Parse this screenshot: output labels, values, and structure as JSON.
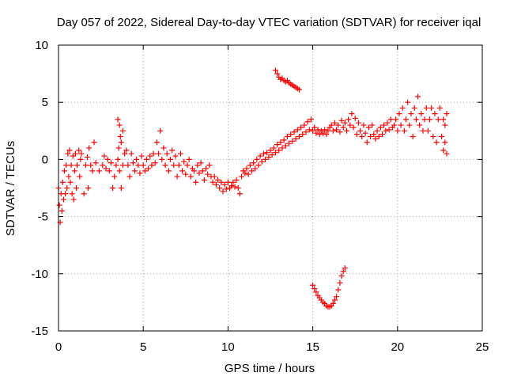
{
  "chart_data": {
    "type": "scatter",
    "title": "Day 057 of 2022, Sidereal Day-to-day VTEC variation (SDTVAR) for receiver iqal",
    "xlabel": "GPS time / hours",
    "ylabel": "SDTVAR / TECUs",
    "xlim": [
      0,
      25
    ],
    "ylim": [
      -15,
      10
    ],
    "xticks": [
      0,
      5,
      10,
      15,
      20,
      25
    ],
    "yticks": [
      -15,
      -10,
      -5,
      0,
      5,
      10
    ],
    "grid": true,
    "marker": "+",
    "series": [
      {
        "name": "SDTVAR",
        "color": "#ff0000",
        "points": [
          [
            0.0,
            -2.5
          ],
          [
            0.05,
            -4.0
          ],
          [
            0.1,
            -5.5
          ],
          [
            0.15,
            -3.0
          ],
          [
            0.2,
            -4.5
          ],
          [
            0.25,
            -2.0
          ],
          [
            0.3,
            -3.5
          ],
          [
            0.35,
            -1.0
          ],
          [
            0.4,
            -3.0
          ],
          [
            0.45,
            -0.5
          ],
          [
            0.5,
            -2.5
          ],
          [
            0.55,
            0.5
          ],
          [
            0.6,
            -1.5
          ],
          [
            0.65,
            0.8
          ],
          [
            0.7,
            -2.0
          ],
          [
            0.75,
            -0.5
          ],
          [
            0.8,
            -3.0
          ],
          [
            0.85,
            0.3
          ],
          [
            0.9,
            -3.5
          ],
          [
            0.95,
            -1.0
          ],
          [
            1.0,
            0.5
          ],
          [
            1.05,
            -2.5
          ],
          [
            1.1,
            -0.5
          ],
          [
            1.2,
            0.8
          ],
          [
            1.25,
            -1.5
          ],
          [
            1.3,
            0.0
          ],
          [
            1.35,
            0.5
          ],
          [
            1.5,
            -3.0
          ],
          [
            1.6,
            -0.5
          ],
          [
            1.7,
            0.2
          ],
          [
            1.8,
            1.0
          ],
          [
            1.9,
            -0.5
          ],
          [
            2.0,
            -1.0
          ],
          [
            2.1,
            1.5
          ],
          [
            2.2,
            -0.3
          ],
          [
            1.75,
            -2.5
          ],
          [
            2.4,
            -1.0
          ],
          [
            2.6,
            -0.5
          ],
          [
            2.7,
            0.3
          ],
          [
            2.8,
            -0.8
          ],
          [
            2.9,
            0.0
          ],
          [
            3.0,
            -1.0
          ],
          [
            3.1,
            -0.3
          ],
          [
            3.2,
            -2.5
          ],
          [
            3.3,
            -1.5
          ],
          [
            3.4,
            -0.5
          ],
          [
            3.5,
            3.5
          ],
          [
            3.55,
            1.0
          ],
          [
            3.6,
            3.0
          ],
          [
            3.65,
            2.0
          ],
          [
            3.7,
            1.5
          ],
          [
            3.8,
            2.5
          ],
          [
            3.9,
            0.5
          ],
          [
            3.5,
            0.0
          ],
          [
            3.6,
            -1.0
          ],
          [
            3.7,
            -2.5
          ],
          [
            3.8,
            -0.5
          ],
          [
            4.0,
            0.8
          ],
          [
            4.1,
            -0.5
          ],
          [
            4.2,
            -1.5
          ],
          [
            4.3,
            0.5
          ],
          [
            4.4,
            -0.3
          ],
          [
            4.5,
            -1.0
          ],
          [
            4.6,
            0.0
          ],
          [
            4.7,
            -0.5
          ],
          [
            4.8,
            -1.2
          ],
          [
            4.9,
            0.3
          ],
          [
            5.0,
            -0.5
          ],
          [
            5.1,
            -1.0
          ],
          [
            5.2,
            0.0
          ],
          [
            5.3,
            -0.8
          ],
          [
            5.4,
            0.3
          ],
          [
            5.5,
            -0.5
          ],
          [
            5.6,
            0.5
          ],
          [
            5.7,
            -0.3
          ],
          [
            5.8,
            1.5
          ],
          [
            5.9,
            0.5
          ],
          [
            6.0,
            2.5
          ],
          [
            6.1,
            0.0
          ],
          [
            6.2,
            1.0
          ],
          [
            6.3,
            -0.5
          ],
          [
            6.4,
            0.5
          ],
          [
            6.5,
            -1.0
          ],
          [
            6.6,
            0.0
          ],
          [
            6.7,
            0.8
          ],
          [
            6.8,
            -0.5
          ],
          [
            6.9,
            0.3
          ],
          [
            7.0,
            -1.5
          ],
          [
            7.1,
            -0.5
          ],
          [
            7.2,
            0.5
          ],
          [
            7.3,
            -1.0
          ],
          [
            7.4,
            -0.2
          ],
          [
            7.5,
            -1.3
          ],
          [
            7.6,
            -0.5
          ],
          [
            7.7,
            0.0
          ],
          [
            7.8,
            -1.5
          ],
          [
            7.9,
            -0.8
          ],
          [
            8.0,
            -1.0
          ],
          [
            8.1,
            -2.0
          ],
          [
            8.2,
            -0.5
          ],
          [
            8.3,
            -1.2
          ],
          [
            8.4,
            -0.3
          ],
          [
            8.5,
            -1.0
          ],
          [
            8.6,
            -1.8
          ],
          [
            8.7,
            -0.8
          ],
          [
            8.8,
            -1.3
          ],
          [
            8.9,
            -0.5
          ],
          [
            9.0,
            -1.5
          ],
          [
            9.1,
            -2.0
          ],
          [
            9.2,
            -1.5
          ],
          [
            9.3,
            -2.2
          ],
          [
            9.4,
            -1.8
          ],
          [
            9.5,
            -2.5
          ],
          [
            9.6,
            -2.0
          ],
          [
            9.7,
            -2.8
          ],
          [
            9.8,
            -2.2
          ],
          [
            9.9,
            -2.6
          ],
          [
            10.0,
            -2.0
          ],
          [
            10.1,
            -2.5
          ],
          [
            10.2,
            -2.3
          ],
          [
            10.3,
            -2.0
          ],
          [
            10.4,
            -2.4
          ],
          [
            10.5,
            -1.8
          ],
          [
            10.6,
            -2.5
          ],
          [
            10.7,
            -3.0
          ],
          [
            10.8,
            -1.5
          ],
          [
            10.9,
            -1.0
          ],
          [
            11.0,
            -1.2
          ],
          [
            11.1,
            -0.8
          ],
          [
            11.2,
            -1.3
          ],
          [
            11.3,
            -0.5
          ],
          [
            11.4,
            -1.0
          ],
          [
            11.5,
            -0.3
          ],
          [
            11.6,
            -0.8
          ],
          [
            11.7,
            0.0
          ],
          [
            11.8,
            -0.5
          ],
          [
            11.9,
            0.3
          ],
          [
            12.0,
            -0.2
          ],
          [
            12.1,
            0.5
          ],
          [
            12.2,
            0.0
          ],
          [
            12.3,
            0.6
          ],
          [
            12.4,
            0.2
          ],
          [
            12.5,
            0.8
          ],
          [
            12.6,
            0.4
          ],
          [
            12.7,
            1.0
          ],
          [
            12.8,
            0.6
          ],
          [
            12.9,
            1.3
          ],
          [
            13.0,
            0.8
          ],
          [
            13.1,
            1.5
          ],
          [
            13.2,
            1.0
          ],
          [
            13.3,
            1.7
          ],
          [
            13.4,
            1.2
          ],
          [
            13.5,
            2.0
          ],
          [
            13.6,
            1.4
          ],
          [
            13.7,
            2.2
          ],
          [
            13.8,
            1.6
          ],
          [
            13.9,
            2.4
          ],
          [
            14.0,
            1.8
          ],
          [
            14.1,
            2.6
          ],
          [
            14.2,
            2.0
          ],
          [
            14.3,
            2.8
          ],
          [
            14.4,
            2.2
          ],
          [
            14.5,
            3.0
          ],
          [
            14.6,
            2.4
          ],
          [
            14.7,
            3.3
          ],
          [
            14.8,
            2.6
          ],
          [
            14.9,
            3.5
          ],
          [
            15.0,
            2.5
          ],
          [
            15.1,
            2.8
          ],
          [
            15.2,
            2.3
          ],
          [
            15.3,
            2.6
          ],
          [
            15.4,
            2.2
          ],
          [
            15.5,
            2.5
          ],
          [
            15.6,
            2.3
          ],
          [
            15.7,
            2.6
          ],
          [
            15.8,
            2.2
          ],
          [
            15.9,
            2.5
          ],
          [
            16.0,
            2.8
          ],
          [
            16.1,
            3.0
          ],
          [
            16.2,
            2.5
          ],
          [
            16.3,
            3.2
          ],
          [
            16.4,
            2.6
          ],
          [
            16.5,
            3.0
          ],
          [
            16.6,
            2.4
          ],
          [
            16.7,
            3.4
          ],
          [
            16.8,
            2.8
          ],
          [
            16.9,
            3.2
          ],
          [
            17.0,
            2.5
          ],
          [
            17.1,
            3.5
          ],
          [
            17.2,
            3.0
          ],
          [
            17.3,
            4.0
          ],
          [
            17.4,
            2.8
          ],
          [
            17.5,
            3.6
          ],
          [
            17.6,
            2.2
          ],
          [
            17.7,
            3.2
          ],
          [
            17.8,
            2.5
          ],
          [
            17.9,
            2.0
          ],
          [
            18.0,
            3.0
          ],
          [
            18.1,
            2.3
          ],
          [
            18.2,
            1.5
          ],
          [
            18.3,
            2.8
          ],
          [
            18.4,
            2.0
          ],
          [
            18.5,
            3.0
          ],
          [
            18.6,
            2.2
          ],
          [
            18.7,
            1.8
          ],
          [
            18.8,
            2.5
          ],
          [
            18.9,
            2.0
          ],
          [
            19.0,
            2.8
          ],
          [
            19.1,
            2.2
          ],
          [
            19.2,
            3.0
          ],
          [
            19.3,
            2.5
          ],
          [
            19.4,
            3.2
          ],
          [
            19.5,
            2.6
          ],
          [
            19.6,
            3.5
          ],
          [
            19.7,
            2.8
          ],
          [
            19.8,
            3.0
          ],
          [
            19.9,
            3.5
          ],
          [
            20.0,
            2.5
          ],
          [
            20.1,
            4.0
          ],
          [
            20.2,
            3.0
          ],
          [
            20.3,
            4.5
          ],
          [
            20.4,
            2.5
          ],
          [
            20.5,
            3.5
          ],
          [
            20.6,
            5.0
          ],
          [
            20.7,
            3.0
          ],
          [
            20.8,
            4.0
          ],
          [
            20.9,
            2.0
          ],
          [
            21.0,
            4.5
          ],
          [
            21.1,
            3.5
          ],
          [
            21.2,
            5.5
          ],
          [
            21.3,
            3.0
          ],
          [
            21.4,
            4.0
          ],
          [
            21.5,
            2.5
          ],
          [
            21.6,
            3.5
          ],
          [
            21.7,
            4.5
          ],
          [
            21.8,
            2.5
          ],
          [
            21.9,
            3.5
          ],
          [
            22.0,
            4.5
          ],
          [
            22.1,
            2.0
          ],
          [
            22.2,
            4.0
          ],
          [
            22.3,
            1.5
          ],
          [
            22.4,
            3.5
          ],
          [
            22.5,
            4.5
          ],
          [
            22.6,
            2.0
          ],
          [
            22.7,
            3.5
          ],
          [
            22.8,
            1.5
          ],
          [
            22.9,
            0.5
          ],
          [
            22.9,
            4.0
          ],
          [
            22.8,
            3.0
          ],
          [
            22.7,
            0.8
          ],
          [
            12.8,
            7.8
          ],
          [
            12.9,
            7.5
          ],
          [
            13.0,
            7.2
          ],
          [
            13.1,
            7.0
          ],
          [
            13.2,
            7.1
          ],
          [
            13.3,
            6.9
          ],
          [
            13.4,
            6.8
          ],
          [
            13.5,
            6.9
          ],
          [
            13.6,
            6.7
          ],
          [
            13.7,
            6.6
          ],
          [
            13.8,
            6.5
          ],
          [
            13.9,
            6.4
          ],
          [
            14.0,
            6.3
          ],
          [
            14.1,
            6.2
          ],
          [
            14.2,
            6.1
          ],
          [
            15.0,
            -11.0
          ],
          [
            15.1,
            -11.3
          ],
          [
            15.2,
            -11.6
          ],
          [
            15.3,
            -11.9
          ],
          [
            15.4,
            -12.1
          ],
          [
            15.5,
            -12.3
          ],
          [
            15.6,
            -12.5
          ],
          [
            15.7,
            -12.6
          ],
          [
            15.8,
            -12.8
          ],
          [
            15.9,
            -12.9
          ],
          [
            16.0,
            -12.9
          ],
          [
            16.1,
            -12.8
          ],
          [
            16.2,
            -12.6
          ],
          [
            16.3,
            -12.3
          ],
          [
            16.4,
            -12.0
          ],
          [
            16.5,
            -11.4
          ],
          [
            16.6,
            -10.8
          ],
          [
            16.7,
            -10.2
          ],
          [
            16.8,
            -9.8
          ],
          [
            16.9,
            -9.5
          ]
        ]
      }
    ]
  }
}
